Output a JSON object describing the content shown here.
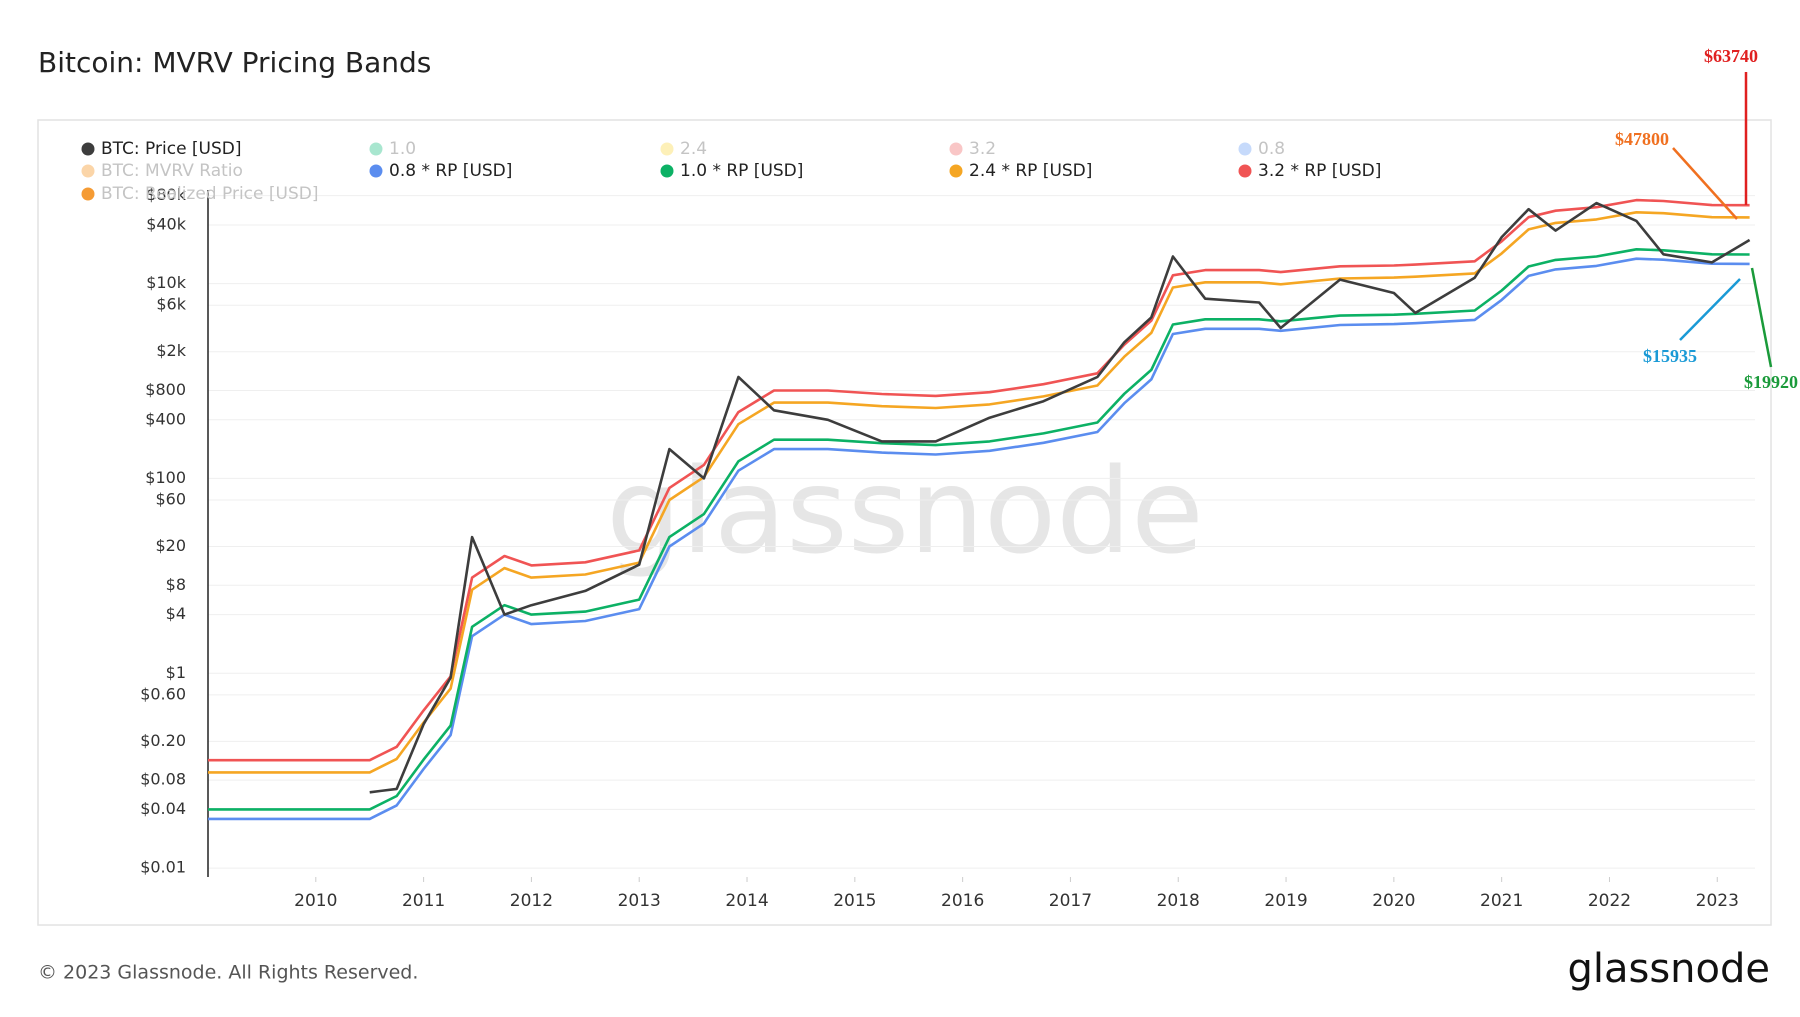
{
  "chart_data": {
    "type": "line",
    "title": "Bitcoin: MVRV Pricing Bands",
    "watermark": "glassnode",
    "footer": "© 2023 Glassnode. All Rights Reserved.",
    "logo": "glassnode",
    "log_scale": true,
    "x": [
      2009.0,
      2009.5,
      2010.0,
      2010.5,
      2010.75,
      2011.0,
      2011.25,
      2011.45,
      2011.75,
      2012.0,
      2012.5,
      2013.0,
      2013.28,
      2013.6,
      2013.92,
      2014.25,
      2014.75,
      2015.25,
      2015.75,
      2016.25,
      2016.75,
      2017.25,
      2017.5,
      2017.75,
      2017.95,
      2018.25,
      2018.75,
      2018.95,
      2019.5,
      2020.0,
      2020.2,
      2020.75,
      2021.0,
      2021.25,
      2021.5,
      2021.88,
      2022.25,
      2022.5,
      2022.95,
      2023.3
    ],
    "xlim": [
      2009.0,
      2023.35
    ],
    "xticks": [
      2010,
      2011,
      2012,
      2013,
      2014,
      2015,
      2016,
      2017,
      2018,
      2019,
      2020,
      2021,
      2022,
      2023
    ],
    "ylim": [
      0.0081,
      91400
    ],
    "yticks": [
      {
        "value": 0.01,
        "label": "$0.01"
      },
      {
        "value": 0.04,
        "label": "$0.04"
      },
      {
        "value": 0.08,
        "label": "$0.08"
      },
      {
        "value": 0.2,
        "label": "$0.20"
      },
      {
        "value": 0.6,
        "label": "$0.60"
      },
      {
        "value": 1,
        "label": "$1"
      },
      {
        "value": 4,
        "label": "$4"
      },
      {
        "value": 8,
        "label": "$8"
      },
      {
        "value": 20,
        "label": "$20"
      },
      {
        "value": 60,
        "label": "$60"
      },
      {
        "value": 100,
        "label": "$100"
      },
      {
        "value": 400,
        "label": "$400"
      },
      {
        "value": 800,
        "label": "$800"
      },
      {
        "value": 2000,
        "label": "$2k"
      },
      {
        "value": 6000,
        "label": "$6k"
      },
      {
        "value": 10000,
        "label": "$10k"
      },
      {
        "value": 40000,
        "label": "$40k"
      },
      {
        "value": 80000,
        "label": "$80k"
      }
    ],
    "grid": true,
    "series": [
      {
        "name": "BTC: Price [USD]",
        "color": "#3d3d3d",
        "values": [
          null,
          null,
          null,
          0.06,
          0.065,
          0.3,
          0.9,
          25,
          4,
          5,
          7,
          13,
          200,
          100,
          1100,
          500,
          400,
          240,
          240,
          420,
          620,
          1100,
          2500,
          4500,
          19000,
          7000,
          6400,
          3500,
          11000,
          8000,
          5000,
          11500,
          30000,
          58000,
          35000,
          67000,
          44000,
          20000,
          16500,
          28000
        ]
      },
      {
        "name": "0.8 * RP [USD]",
        "color": "#5b8def",
        "values": [
          0.032,
          0.032,
          0.032,
          0.032,
          0.044,
          0.104,
          0.232,
          2.4,
          4,
          3.2,
          3.44,
          4.56,
          20,
          34.4,
          120,
          200,
          200,
          184,
          176,
          192,
          232,
          300,
          592,
          1040,
          3040,
          3440,
          3440,
          3280,
          3760,
          3840,
          3920,
          4240,
          6800,
          12000,
          14000,
          15200,
          18000,
          17600,
          16000,
          15935
        ]
      },
      {
        "name": "1.0 * RP [USD]",
        "color": "#0cb165",
        "values": [
          0.04,
          0.04,
          0.04,
          0.04,
          0.055,
          0.13,
          0.29,
          3,
          5,
          4,
          4.3,
          5.7,
          25,
          43,
          150,
          250,
          250,
          230,
          220,
          240,
          290,
          375,
          740,
          1300,
          3800,
          4300,
          4300,
          4100,
          4700,
          4800,
          4900,
          5300,
          8500,
          15000,
          17500,
          19000,
          22500,
          22000,
          20000,
          19920
        ]
      },
      {
        "name": "2.4 * RP [USD]",
        "color": "#f5a623",
        "values": [
          0.096,
          0.096,
          0.096,
          0.096,
          0.132,
          0.312,
          0.696,
          7.2,
          12,
          9.6,
          10.32,
          13.68,
          60,
          103.2,
          360,
          600,
          600,
          552,
          528,
          576,
          696,
          900,
          1776,
          3120,
          9120,
          10320,
          10320,
          9840,
          11280,
          11520,
          11760,
          12720,
          20400,
          36000,
          42000,
          45600,
          54000,
          52800,
          48000,
          47800
        ]
      },
      {
        "name": "3.2 * RP [USD]",
        "color": "#f05454",
        "values": [
          0.128,
          0.128,
          0.128,
          0.128,
          0.176,
          0.416,
          0.928,
          9.6,
          16,
          12.8,
          13.76,
          18.24,
          80,
          137.6,
          480,
          800,
          800,
          736,
          704,
          768,
          928,
          1200,
          2368,
          4160,
          12160,
          13760,
          13760,
          13120,
          15040,
          15360,
          15680,
          16960,
          27200,
          48000,
          56000,
          60800,
          72000,
          70400,
          64000,
          63740
        ]
      }
    ],
    "inactive_legend": [
      {
        "name": "1.0",
        "color": "#a8e6cf"
      },
      {
        "name": "2.4",
        "color": "#fdf0b8"
      },
      {
        "name": "3.2",
        "color": "#f9c6c6"
      },
      {
        "name": "0.8",
        "color": "#c6dafb"
      },
      {
        "name": "BTC: MVRV Ratio",
        "color": "#fbd5a8"
      },
      {
        "name": "BTC: Realized Price [USD]",
        "color": "#f4901e"
      }
    ],
    "annotations": [
      {
        "text": "$63740",
        "color": "#e02020"
      },
      {
        "text": "$47800",
        "color": "#f07020"
      },
      {
        "text": "$15935",
        "color": "#1a9ad6"
      },
      {
        "text": "$19920",
        "color": "#1a9a3a"
      }
    ]
  }
}
